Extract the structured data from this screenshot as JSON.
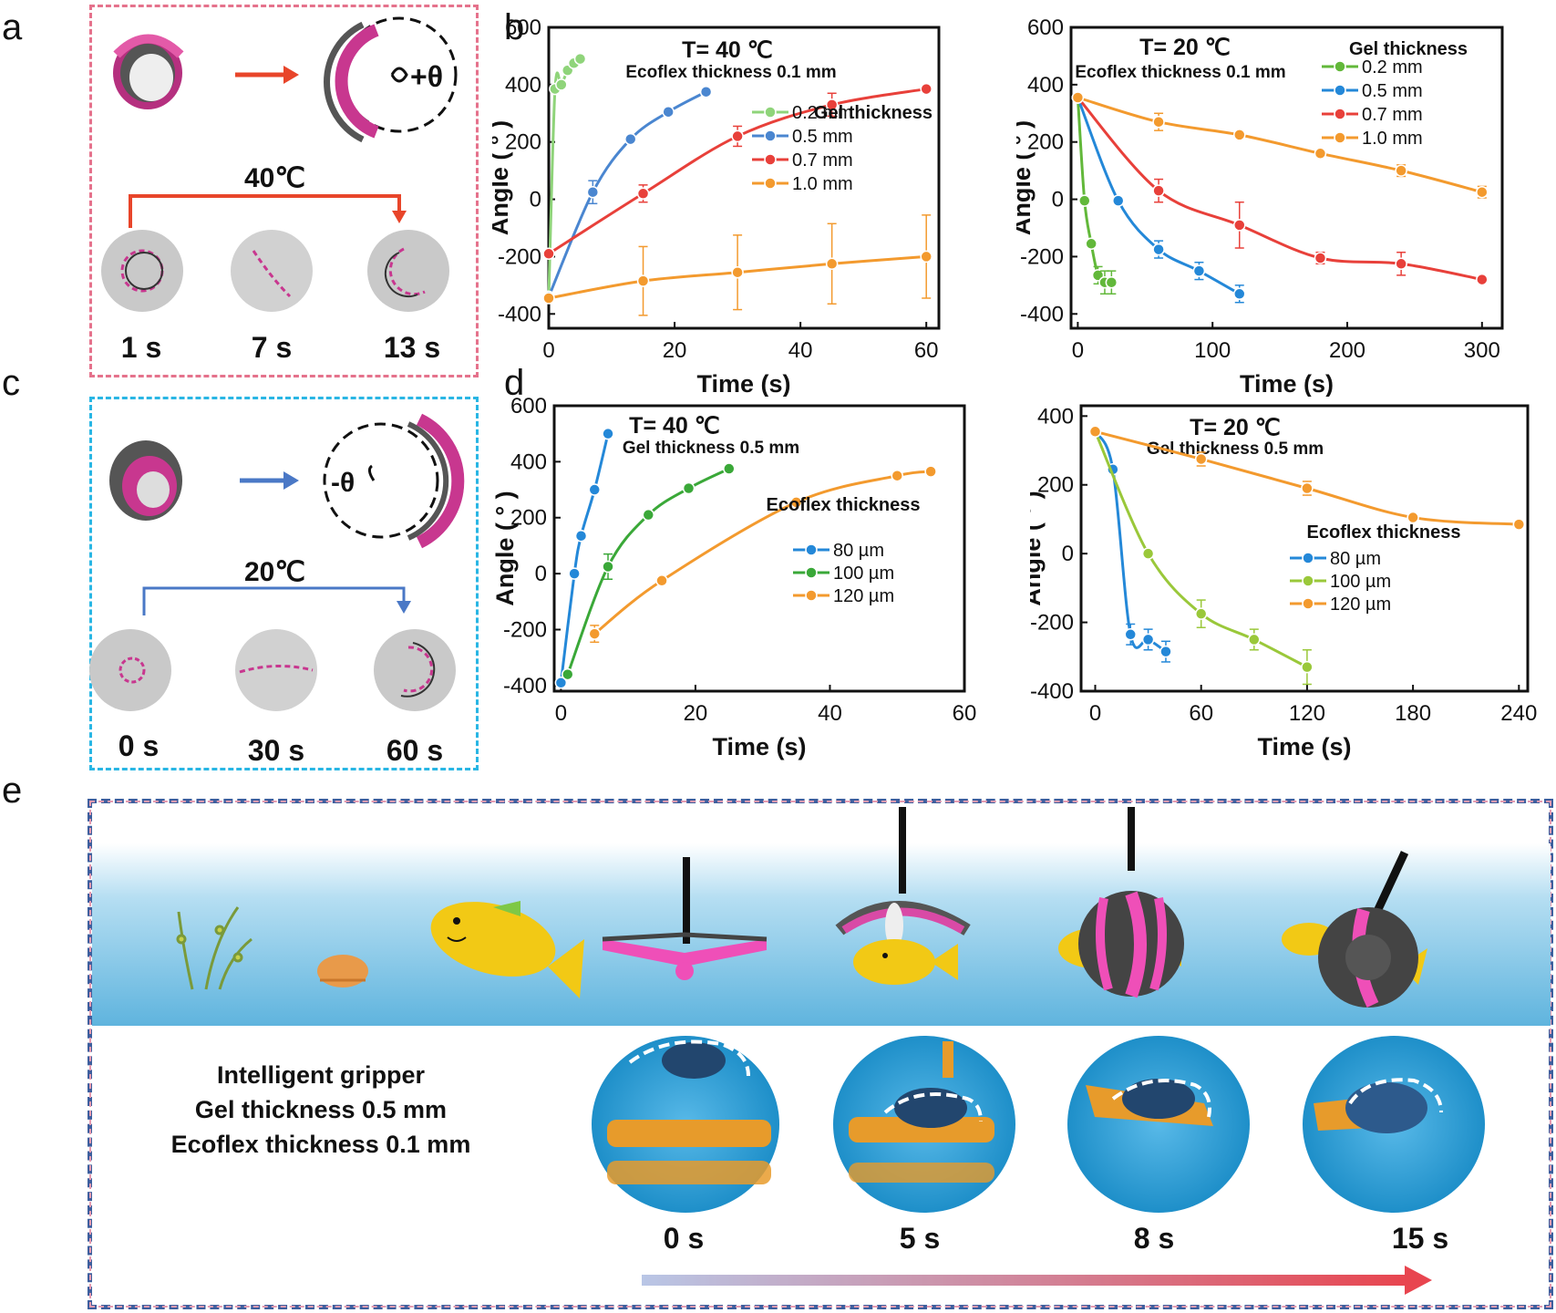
{
  "panels": {
    "a": {
      "letter": "a",
      "temperature": "40℃",
      "angle_symbol": "+θ",
      "times": [
        "1 s",
        "7 s",
        "13 s"
      ]
    },
    "b": {
      "letter": "b"
    },
    "c": {
      "letter": "c",
      "temperature": "20℃",
      "angle_symbol": "-θ",
      "times": [
        "0 s",
        "30 s",
        "60 s"
      ]
    },
    "d": {
      "letter": "d"
    },
    "e": {
      "letter": "e",
      "caption": [
        "Intelligent  gripper",
        "Gel thickness 0.5 mm",
        "Ecoflex thickness 0.1 mm"
      ],
      "times": [
        "0 s",
        "5 s",
        "8 s",
        "15 s"
      ]
    }
  },
  "colors": {
    "red_box": "#e5728c",
    "blue_box": "#29b6e4",
    "magenta": "#c8378f",
    "red_arrow": "#e8452a",
    "blue_arrow": "#4a78c6",
    "water": "#9fd4ee",
    "fish": "#f2c915"
  },
  "chart_data": [
    {
      "id": "b-left",
      "type": "line",
      "title": "T= 40 ℃",
      "subtitle": "Ecoflex thickness 0.1 mm",
      "xlabel": "Time (s)",
      "ylabel": "Angle ( ° )",
      "xlim": [
        0,
        62
      ],
      "ylim": [
        -450,
        600
      ],
      "xticks": [
        0,
        20,
        40,
        60
      ],
      "yticks": [
        -400,
        -200,
        0,
        200,
        400,
        600
      ],
      "legend_title": "Gel thickness",
      "legend_position": "right",
      "series": [
        {
          "name": "0.2 mm",
          "color": "#8fd47a",
          "x": [
            0,
            1,
            2,
            3,
            4,
            5
          ],
          "y": [
            -340,
            385,
            400,
            450,
            475,
            490
          ],
          "err": [
            0,
            0,
            0,
            0,
            0,
            0
          ]
        },
        {
          "name": "0.5 mm",
          "color": "#4a86d0",
          "x": [
            0,
            7,
            13,
            19,
            25
          ],
          "y": [
            -340,
            25,
            210,
            305,
            375
          ],
          "err": [
            0,
            40,
            0,
            0,
            0
          ]
        },
        {
          "name": "0.7 mm",
          "color": "#e8403a",
          "x": [
            0,
            15,
            30,
            45,
            60
          ],
          "y": [
            -190,
            20,
            220,
            330,
            385
          ],
          "err": [
            0,
            30,
            35,
            40,
            0
          ]
        },
        {
          "name": "1.0 mm",
          "color": "#f39a2e",
          "x": [
            0,
            15,
            30,
            45,
            60
          ],
          "y": [
            -345,
            -285,
            -255,
            -225,
            -200
          ],
          "err": [
            0,
            120,
            130,
            140,
            145
          ]
        }
      ]
    },
    {
      "id": "b-right",
      "type": "line",
      "title": "T= 20 ℃",
      "subtitle": "Ecoflex thickness 0.1 mm",
      "xlabel": "Time (s)",
      "ylabel": "Angle ( ° )",
      "xlim": [
        -5,
        315
      ],
      "ylim": [
        -450,
        600
      ],
      "xticks": [
        0,
        100,
        200,
        300
      ],
      "yticks": [
        -400,
        -200,
        0,
        200,
        400,
        600
      ],
      "legend_title": "Gel thickness",
      "legend_position": "top-right",
      "series": [
        {
          "name": "0.2 mm",
          "color": "#62b83a",
          "x": [
            0,
            5,
            10,
            15,
            20,
            25
          ],
          "y": [
            355,
            -5,
            -155,
            -265,
            -290,
            -290
          ],
          "err": [
            0,
            0,
            0,
            30,
            40,
            40
          ]
        },
        {
          "name": "0.5 mm",
          "color": "#2488d8",
          "x": [
            0,
            30,
            60,
            90,
            120
          ],
          "y": [
            355,
            -5,
            -175,
            -250,
            -330
          ],
          "err": [
            0,
            0,
            30,
            30,
            30
          ]
        },
        {
          "name": "0.7 mm",
          "color": "#e8403a",
          "x": [
            0,
            60,
            120,
            180,
            240,
            300
          ],
          "y": [
            355,
            30,
            -90,
            -205,
            -225,
            -280
          ],
          "err": [
            0,
            40,
            80,
            20,
            40,
            0
          ]
        },
        {
          "name": "1.0 mm",
          "color": "#f39a2e",
          "x": [
            0,
            60,
            120,
            180,
            240,
            300
          ],
          "y": [
            355,
            270,
            225,
            160,
            100,
            25
          ],
          "err": [
            0,
            30,
            0,
            0,
            20,
            20
          ]
        }
      ]
    },
    {
      "id": "d-left",
      "type": "line",
      "title": "T= 40 ℃",
      "subtitle": "Gel thickness 0.5 mm",
      "xlabel": "Time (s)",
      "ylabel": "Angle ( ° )",
      "xlim": [
        -1,
        60
      ],
      "ylim": [
        -420,
        600
      ],
      "xticks": [
        0,
        20,
        40,
        60
      ],
      "yticks": [
        -400,
        -200,
        0,
        200,
        400,
        600
      ],
      "legend_title": "Ecoflex thickness",
      "legend_position": "right",
      "series": [
        {
          "name": "80 µm",
          "color": "#2488d8",
          "x": [
            0,
            2,
            3,
            5,
            7
          ],
          "y": [
            -390,
            0,
            135,
            300,
            500
          ],
          "err": [
            0,
            0,
            0,
            0,
            0
          ]
        },
        {
          "name": "100 µm",
          "color": "#3aa838",
          "x": [
            1,
            7,
            13,
            19,
            25
          ],
          "y": [
            -360,
            25,
            210,
            305,
            375
          ],
          "err": [
            0,
            45,
            0,
            0,
            0
          ]
        },
        {
          "name": "120 µm",
          "color": "#f39a2e",
          "x": [
            5,
            15,
            35,
            50,
            55
          ],
          "y": [
            -215,
            -25,
            255,
            350,
            365
          ],
          "err": [
            30,
            0,
            0,
            0,
            0
          ]
        }
      ]
    },
    {
      "id": "d-right",
      "type": "line",
      "title": "T= 20 ℃",
      "subtitle": "Gel thickness 0.5 mm",
      "xlabel": "Time (s)",
      "ylabel": "Angle ( ° )",
      "xlim": [
        -8,
        245
      ],
      "ylim": [
        -400,
        430
      ],
      "xticks": [
        0,
        60,
        120,
        180,
        240
      ],
      "yticks": [
        -400,
        -200,
        0,
        200,
        400
      ],
      "legend_title": "Ecoflex thickness",
      "legend_position": "right",
      "series": [
        {
          "name": "80 µm",
          "color": "#2488d8",
          "x": [
            0,
            10,
            20,
            30,
            40
          ],
          "y": [
            355,
            245,
            -235,
            -250,
            -285
          ],
          "err": [
            0,
            0,
            30,
            30,
            30
          ]
        },
        {
          "name": "100 µm",
          "color": "#9ac83a",
          "x": [
            0,
            30,
            60,
            90,
            120
          ],
          "y": [
            355,
            0,
            -175,
            -250,
            -330
          ],
          "err": [
            0,
            0,
            40,
            30,
            50
          ]
        },
        {
          "name": "120 µm",
          "color": "#f39a2e",
          "x": [
            0,
            60,
            120,
            180,
            240
          ],
          "y": [
            355,
            275,
            190,
            105,
            85
          ],
          "err": [
            0,
            20,
            20,
            0,
            0
          ]
        }
      ]
    }
  ]
}
